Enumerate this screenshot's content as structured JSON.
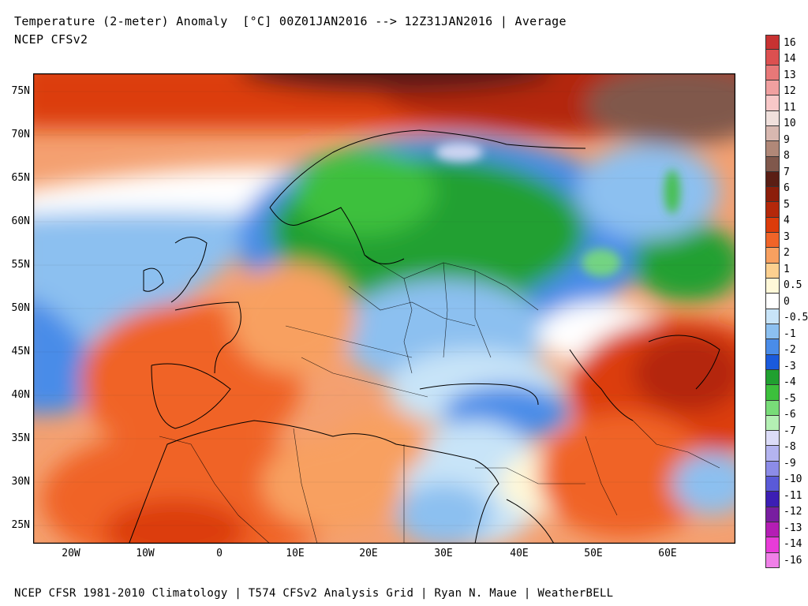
{
  "header": {
    "title": "Temperature (2-meter) Anomaly  [°C] 00Z01JAN2016 --> 12Z31JAN2016 | Average",
    "subtitle": "NCEP CFSv2"
  },
  "footer": "NCEP CFSR 1981-2010 Climatology | T574 CFSv2 Analysis Grid | Ryan N. Maue | WeatherBELL",
  "axes": {
    "lat_labels": [
      "75N",
      "70N",
      "65N",
      "60N",
      "55N",
      "50N",
      "45N",
      "40N",
      "35N",
      "30N",
      "25N"
    ],
    "lon_labels": [
      "20W",
      "10W",
      "0",
      "10E",
      "20E",
      "30E",
      "40E",
      "50E",
      "60E"
    ]
  },
  "colorbar": {
    "labels": [
      "16",
      "14",
      "13",
      "12",
      "11",
      "10",
      "9",
      "8",
      "7",
      "6",
      "5",
      "4",
      "3",
      "2",
      "1",
      "0.5",
      "0",
      "-0.5",
      "-1",
      "-2",
      "-3",
      "-4",
      "-5",
      "-6",
      "-7",
      "-8",
      "-9",
      "-10",
      "-11",
      "-12",
      "-13",
      "-14",
      "-16"
    ],
    "colors": [
      "#c83232",
      "#dc5050",
      "#e87878",
      "#f0a0a0",
      "#f8c8c8",
      "#f0e0dc",
      "#d8b8b0",
      "#b08878",
      "#80584c",
      "#5a1e14",
      "#8c1e0a",
      "#b4280a",
      "#dc3c0a",
      "#f06428",
      "#f8a060",
      "#fcd090",
      "#fff8d8",
      "#ffffff",
      "#c8e4f8",
      "#8cc0f0",
      "#4a8ce8",
      "#1a5adc",
      "#20a030",
      "#3cc03c",
      "#78dc78",
      "#b4f0b4",
      "#dcdcf8",
      "#b4b4f0",
      "#8c8ce8",
      "#5a5ad8",
      "#3c1eb4",
      "#781ea0",
      "#b41eb4",
      "#e83cd8",
      "#f080e8"
    ]
  },
  "map_data": {
    "region": "Europe / North Africa / Middle East",
    "anomaly_pattern": [
      {
        "area": "Arctic / Greenland Sea",
        "tone": "warm"
      },
      {
        "area": "Scandinavia / Western Russia",
        "tone": "cold"
      },
      {
        "area": "Iberia / North Africa",
        "tone": "warm"
      },
      {
        "area": "Central Asia",
        "tone": "warm"
      },
      {
        "area": "Eastern Mediterranean / Turkey",
        "tone": "cool"
      }
    ]
  }
}
